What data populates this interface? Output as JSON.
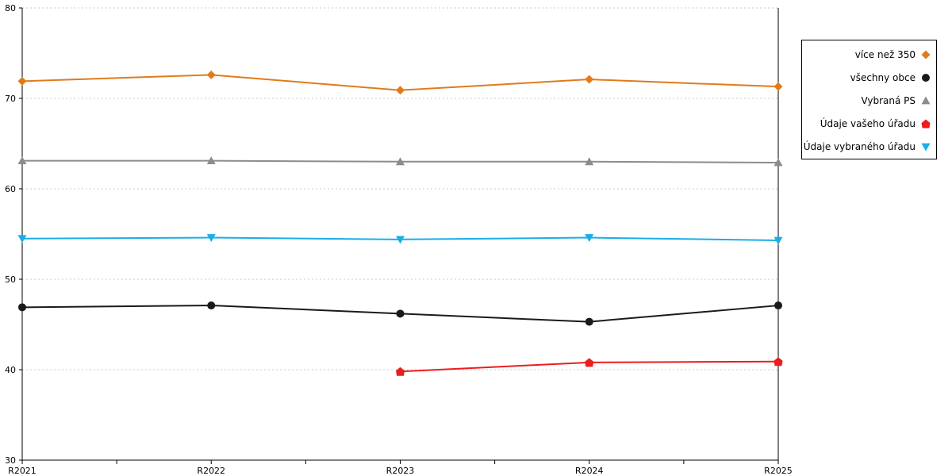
{
  "chart_data": {
    "type": "line",
    "title": "",
    "xlabel": "",
    "ylabel": "",
    "categories": [
      "R2021",
      "R2022",
      "R2023",
      "R2024",
      "R2025"
    ],
    "ylim": [
      30,
      80
    ],
    "yticks": [
      30,
      40,
      50,
      60,
      70,
      80
    ],
    "grid": "horizontal-dotted",
    "legend_position": "right",
    "series": [
      {
        "name": "více než 350",
        "color": "#e07b1b",
        "marker": "diamond",
        "values": [
          71.9,
          72.6,
          70.9,
          72.1,
          71.3
        ]
      },
      {
        "name": "všechny obce",
        "color": "#1a1a1a",
        "marker": "circle",
        "values": [
          46.9,
          47.1,
          46.2,
          45.3,
          47.1
        ]
      },
      {
        "name": "Vybraná PS",
        "color": "#8c8c8c",
        "marker": "triangle-up",
        "values": [
          63.1,
          63.1,
          63.0,
          63.0,
          62.9
        ]
      },
      {
        "name": "Údaje vašeho úřadu",
        "color": "#ee1c1c",
        "marker": "pentagon",
        "values": [
          null,
          null,
          39.8,
          40.8,
          40.9
        ]
      },
      {
        "name": "Údaje vybraného úřadu",
        "color": "#1aaee8",
        "marker": "triangle-down",
        "values": [
          54.5,
          54.6,
          54.4,
          54.6,
          54.3
        ]
      }
    ]
  }
}
